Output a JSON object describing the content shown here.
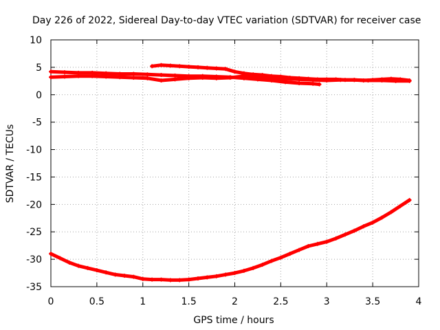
{
  "chart_data": {
    "type": "scatter",
    "title": "Day 226 of 2022, Sidereal Day-to-day VTEC variation (SDTVAR) for receiver case",
    "xlabel": "GPS time / hours",
    "ylabel": "SDTVAR / TECUs",
    "xlim": [
      0,
      4
    ],
    "ylim": [
      -35,
      10
    ],
    "xticks": [
      0,
      0.5,
      1,
      1.5,
      2,
      2.5,
      3,
      3.5,
      4
    ],
    "yticks": [
      -35,
      -30,
      -25,
      -20,
      -15,
      -10,
      -5,
      0,
      5,
      10
    ],
    "grid": true,
    "marker_color": "#ff0000",
    "series": [
      {
        "name": "lower-track",
        "x": [
          0.0,
          0.1,
          0.2,
          0.3,
          0.4,
          0.5,
          0.6,
          0.7,
          0.8,
          0.9,
          1.0,
          1.1,
          1.2,
          1.3,
          1.4,
          1.5,
          1.6,
          1.7,
          1.8,
          1.9,
          2.0,
          2.1,
          2.2,
          2.3,
          2.4,
          2.5,
          2.6,
          2.7,
          2.8,
          2.9,
          3.0,
          3.1,
          3.2,
          3.3,
          3.4,
          3.5,
          3.6,
          3.7,
          3.8,
          3.9
        ],
        "y": [
          -29.0,
          -29.8,
          -30.6,
          -31.2,
          -31.6,
          -32.0,
          -32.4,
          -32.8,
          -33.0,
          -33.2,
          -33.6,
          -33.7,
          -33.7,
          -33.8,
          -33.8,
          -33.7,
          -33.5,
          -33.3,
          -33.1,
          -32.8,
          -32.5,
          -32.1,
          -31.6,
          -31.0,
          -30.3,
          -29.7,
          -29.0,
          -28.3,
          -27.6,
          -27.2,
          -26.8,
          -26.2,
          -25.5,
          -24.8,
          -24.0,
          -23.3,
          -22.4,
          -21.4,
          -20.3,
          -19.2
        ]
      },
      {
        "name": "upper-track-1",
        "x": [
          0.0,
          0.15,
          0.3,
          0.45,
          0.6,
          0.75,
          0.9,
          1.05,
          1.2,
          1.35,
          1.5,
          1.65,
          1.8,
          1.95,
          2.1,
          2.25,
          2.4,
          2.55,
          2.7,
          2.85,
          2.92
        ],
        "y": [
          4.2,
          4.1,
          4.0,
          4.0,
          3.9,
          3.8,
          3.8,
          3.7,
          3.6,
          3.5,
          3.4,
          3.4,
          3.3,
          3.2,
          3.0,
          2.8,
          2.6,
          2.3,
          2.1,
          2.0,
          1.9
        ]
      },
      {
        "name": "upper-track-2",
        "x": [
          0.0,
          0.15,
          0.3,
          0.45,
          0.6,
          0.75,
          0.9,
          1.05,
          1.2,
          1.35,
          1.5,
          1.65,
          1.8,
          1.95,
          2.1,
          2.25,
          2.4,
          2.55,
          2.7,
          2.85,
          3.0,
          3.15,
          3.3,
          3.45,
          3.6,
          3.75,
          3.9
        ],
        "y": [
          3.2,
          3.3,
          3.4,
          3.4,
          3.3,
          3.2,
          3.1,
          3.0,
          2.6,
          2.8,
          3.0,
          3.1,
          3.0,
          3.1,
          3.4,
          3.3,
          3.1,
          2.9,
          2.8,
          2.7,
          2.6,
          2.7,
          2.7,
          2.6,
          2.6,
          2.5,
          2.5
        ]
      },
      {
        "name": "upper-track-3",
        "x": [
          1.1,
          1.2,
          1.3,
          1.4,
          1.5,
          1.6,
          1.7,
          1.8,
          1.9,
          2.0,
          2.1,
          2.2,
          2.3,
          2.4,
          2.5,
          2.6,
          2.7,
          2.8,
          2.9,
          3.0,
          3.1,
          3.2,
          3.3,
          3.4,
          3.5,
          3.6,
          3.7,
          3.8,
          3.9
        ],
        "y": [
          5.2,
          5.4,
          5.3,
          5.2,
          5.1,
          5.0,
          4.9,
          4.8,
          4.7,
          4.2,
          3.9,
          3.7,
          3.6,
          3.4,
          3.3,
          3.1,
          3.0,
          2.9,
          2.8,
          2.8,
          2.8,
          2.7,
          2.7,
          2.6,
          2.7,
          2.8,
          2.9,
          2.8,
          2.6
        ]
      }
    ]
  }
}
